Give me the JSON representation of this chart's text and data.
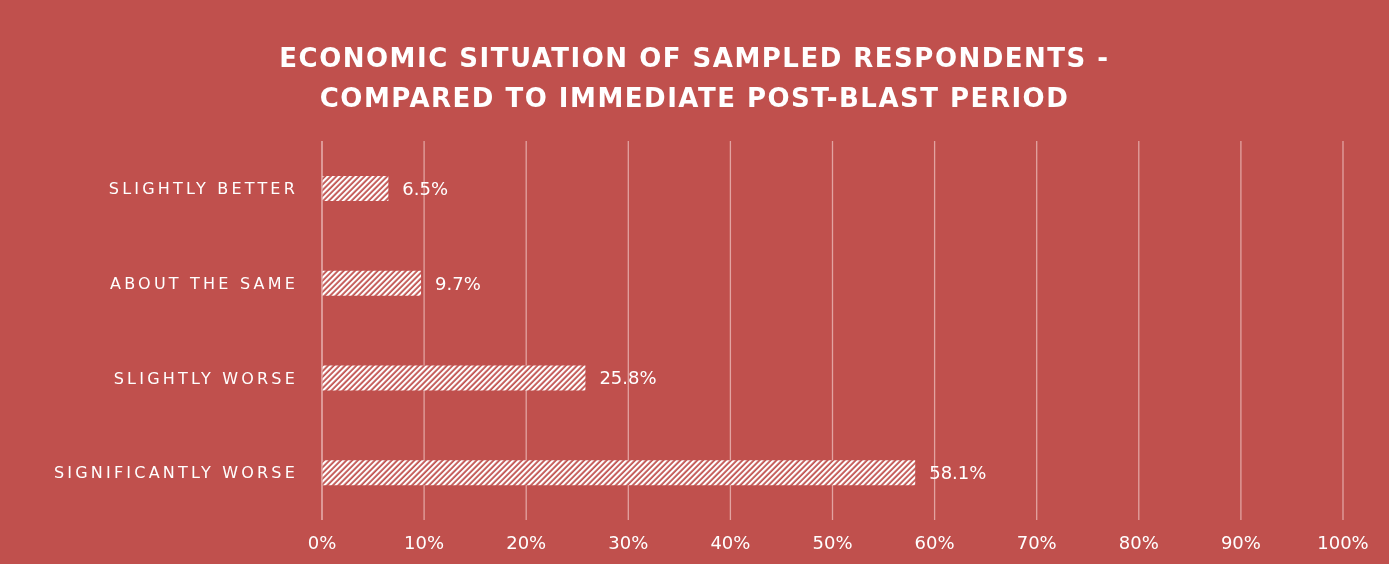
{
  "chart_data": {
    "type": "bar",
    "orientation": "horizontal",
    "title": "ECONOMIC SITUATION OF SAMPLED RESPONDENTS - COMPARED TO IMMEDIATE POST-BLAST PERIOD",
    "categories": [
      "SLIGHTLY BETTER",
      "ABOUT THE SAME",
      "SLIGHTLY WORSE",
      "SIGNIFICANTLY WORSE"
    ],
    "values": [
      6.5,
      9.7,
      25.8,
      58.1
    ],
    "value_labels": [
      "6.5%",
      "9.7%",
      "25.8%",
      "58.1%"
    ],
    "color": "#ffffff",
    "xlim": [
      0,
      100
    ],
    "xticks": [
      {
        "value": 0,
        "label": "0%"
      },
      {
        "value": 10,
        "label": "10%"
      },
      {
        "value": 20,
        "label": "20%"
      },
      {
        "value": 30,
        "label": "30%"
      },
      {
        "value": 40,
        "label": "40%"
      },
      {
        "value": 50,
        "label": "50%"
      },
      {
        "value": 60,
        "label": "60%"
      },
      {
        "value": 70,
        "label": "70%"
      },
      {
        "value": 80,
        "label": "80%"
      },
      {
        "value": 90,
        "label": "90%"
      },
      {
        "value": 100,
        "label": "100%"
      }
    ],
    "grid": "x",
    "legend": false
  }
}
